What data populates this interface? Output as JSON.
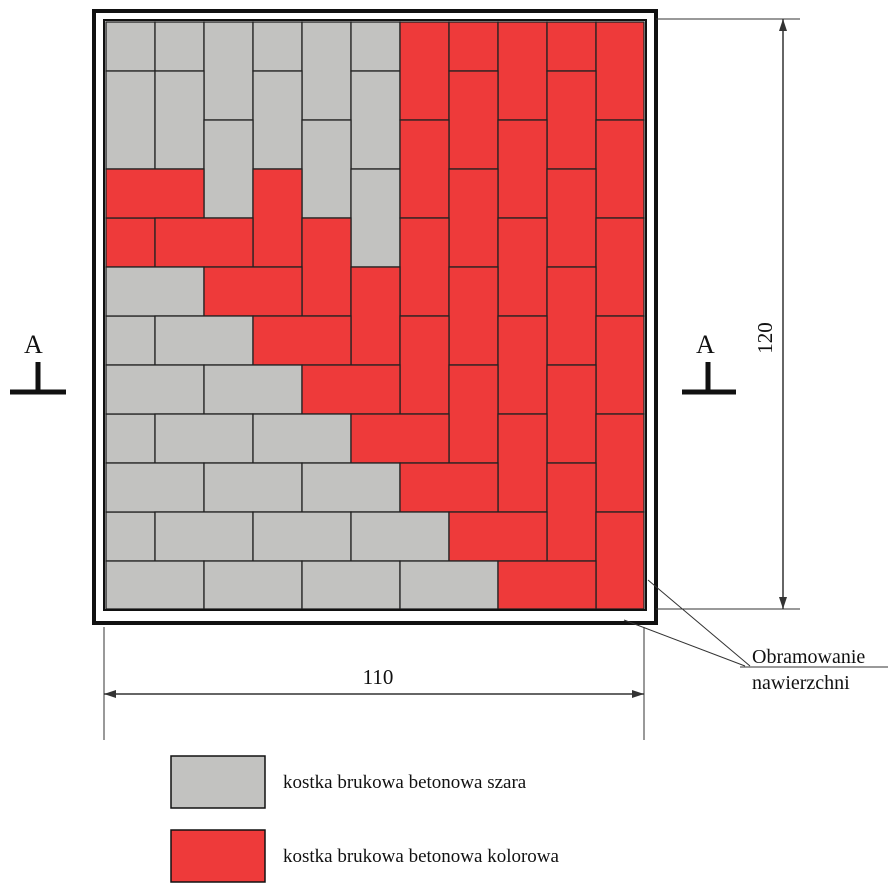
{
  "drawing": {
    "section_marker_left": "A",
    "section_marker_right": "A",
    "dimension_height": "120",
    "dimension_width": "110",
    "border_callout_line1": "Obramowanie",
    "border_callout_line2": "nawierzchni"
  },
  "legend": {
    "items": [
      {
        "label": "kostka brukowa betonowa szara",
        "color": "#c2c2c0"
      },
      {
        "label": "kostka brukowa betonowa kolorowa",
        "color": "#ee3a3a"
      }
    ]
  },
  "colors": {
    "gray_paver": "#c2c2c0",
    "red_paver": "#ee3a3a",
    "joint": "#222222",
    "frame": "#111111"
  }
}
